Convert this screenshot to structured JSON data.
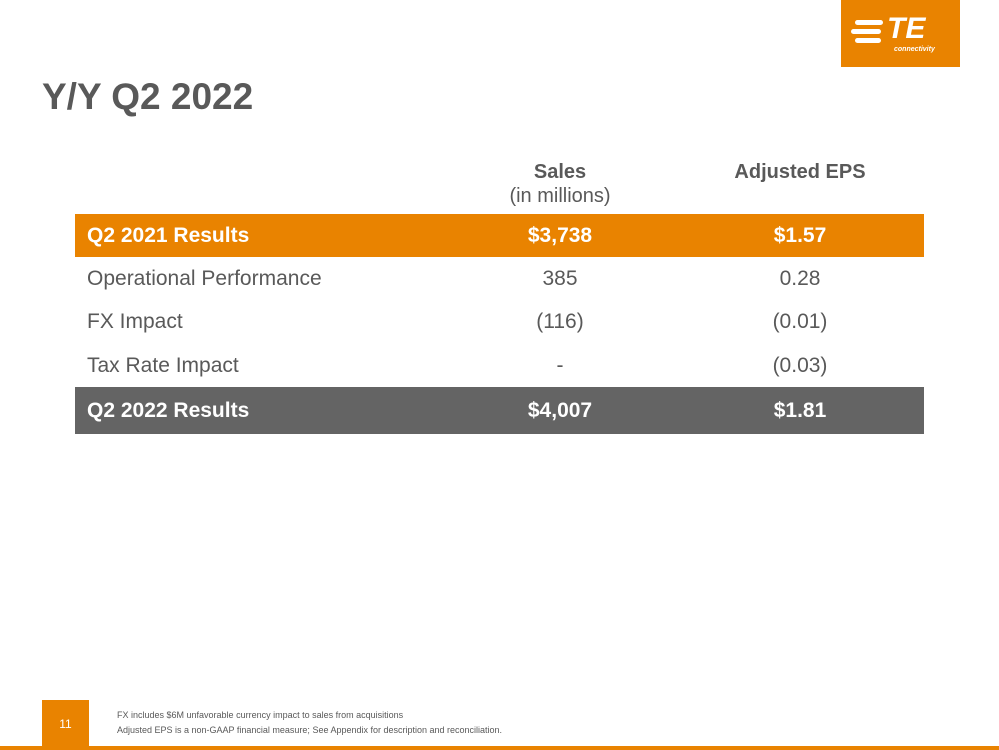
{
  "logo": {
    "mark": "TE",
    "tagline": "connectivity"
  },
  "header": {
    "title": "Y/Y Q2 2022"
  },
  "table": {
    "columns": [
      {
        "label": "Sales",
        "sublabel": "(in millions)"
      },
      {
        "label": "Adjusted EPS"
      }
    ],
    "rows": [
      [
        "Q2 2021 Results",
        "$3,738",
        "$1.57"
      ],
      [
        "Operational Performance",
        "385",
        "0.28"
      ],
      [
        "FX Impact",
        "(116)",
        "(0.01)"
      ],
      [
        "Tax Rate Impact",
        "-",
        "(0.03)"
      ],
      [
        "Q2 2022 Results",
        "$4,007",
        "$1.81"
      ]
    ]
  },
  "footer": {
    "page": "11",
    "notes": [
      "FX includes $6M unfavorable currency impact to sales from acquisitions",
      "Adjusted EPS is a non-GAAP financial measure; See Appendix for description and reconciliation."
    ]
  }
}
